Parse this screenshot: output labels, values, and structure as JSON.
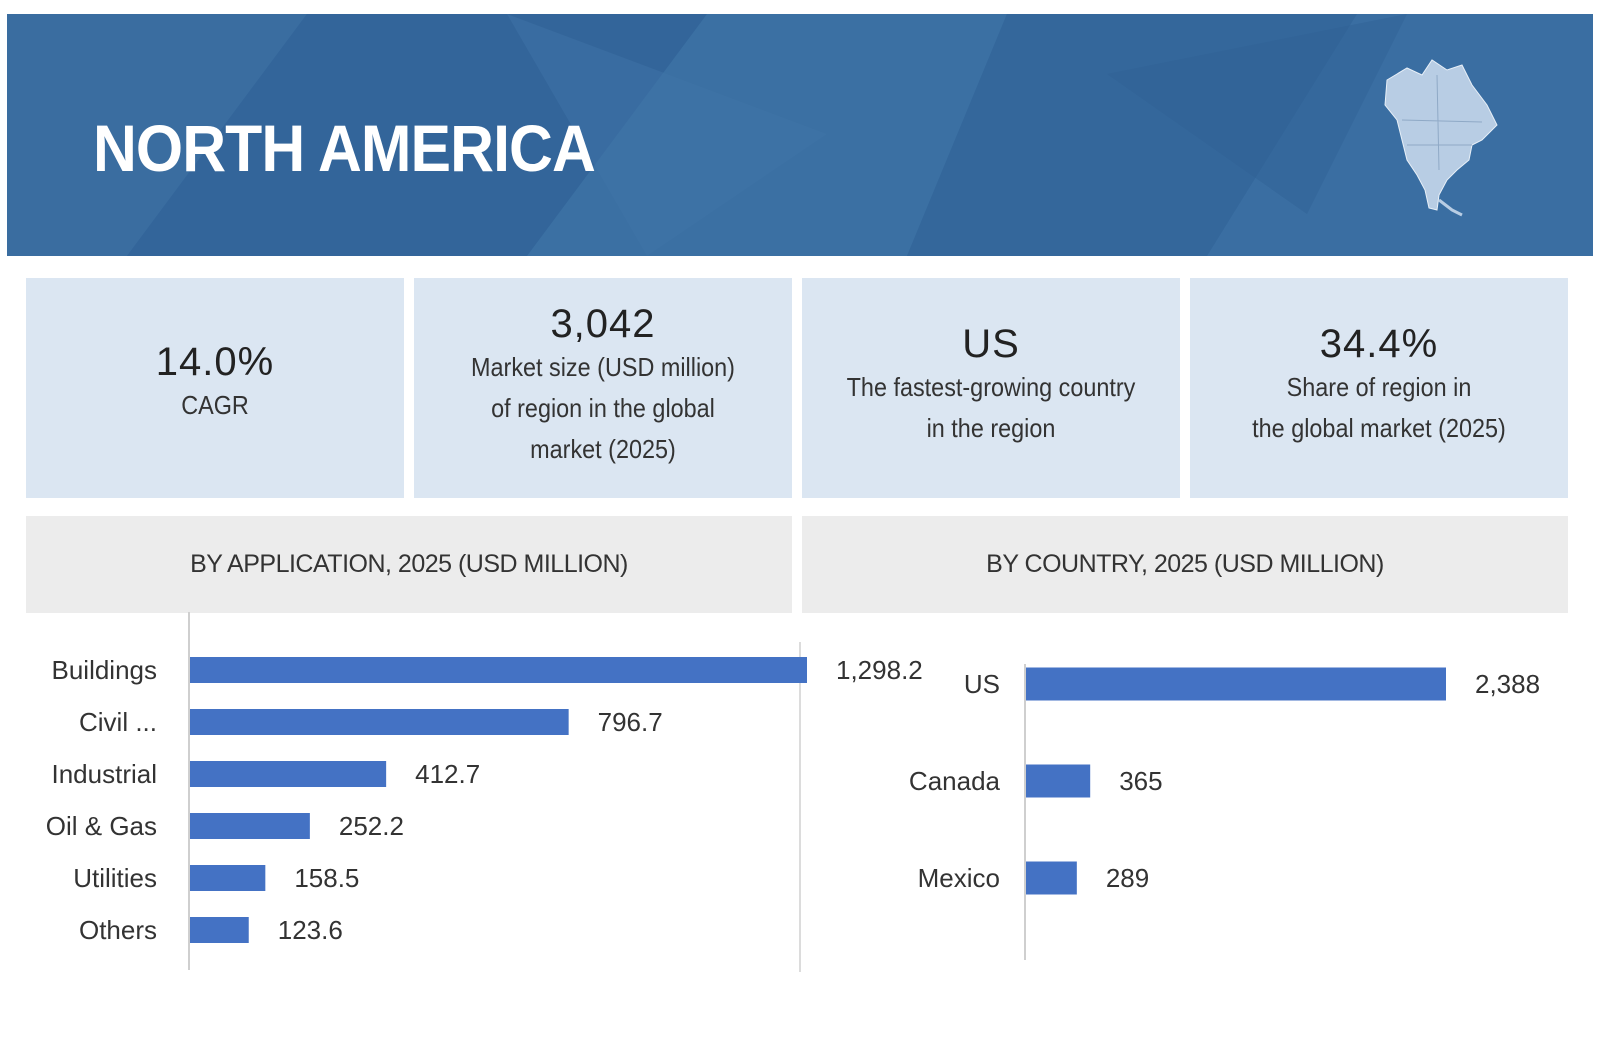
{
  "banner": {
    "title": "NORTH AMERICA",
    "map_icon": "north-america-map-icon"
  },
  "kpis": [
    {
      "value": "14.0%",
      "lines": [
        "CAGR"
      ]
    },
    {
      "value": "3,042",
      "lines": [
        "Market size (USD million)",
        "of region in the global",
        "market (2025)"
      ]
    },
    {
      "value": "US",
      "lines": [
        "The fastest-growing country",
        "in the region"
      ]
    },
    {
      "value": "34.4%",
      "lines": [
        "Share of region in",
        "the global market (2025)"
      ]
    }
  ],
  "colors": {
    "banner": "#36699c",
    "bar": "#4472c4",
    "kpi_bg": "#dbe6f2",
    "header_bg": "#ececec"
  },
  "chart_data": [
    {
      "type": "bar",
      "orientation": "horizontal",
      "title": "BY APPLICATION, 2025 (USD MILLION)",
      "categories": [
        "Buildings",
        "Civil ...",
        "Industrial",
        "Oil & Gas",
        "Utilities",
        "Others"
      ],
      "values": [
        1298.2,
        796.7,
        412.7,
        252.2,
        158.5,
        123.6
      ],
      "value_labels": [
        "1,298.2",
        "796.7",
        "412.7",
        "252.2",
        "158.5",
        "123.6"
      ],
      "xlim": [
        0,
        1298.2
      ],
      "grid": false
    },
    {
      "type": "bar",
      "orientation": "horizontal",
      "title": "BY COUNTRY, 2025 (USD MILLION)",
      "categories": [
        "US",
        "Canada",
        "Mexico"
      ],
      "values": [
        2388,
        365,
        289
      ],
      "value_labels": [
        "2,388",
        "365",
        "289"
      ],
      "xlim": [
        0,
        2388
      ],
      "grid": false
    }
  ]
}
